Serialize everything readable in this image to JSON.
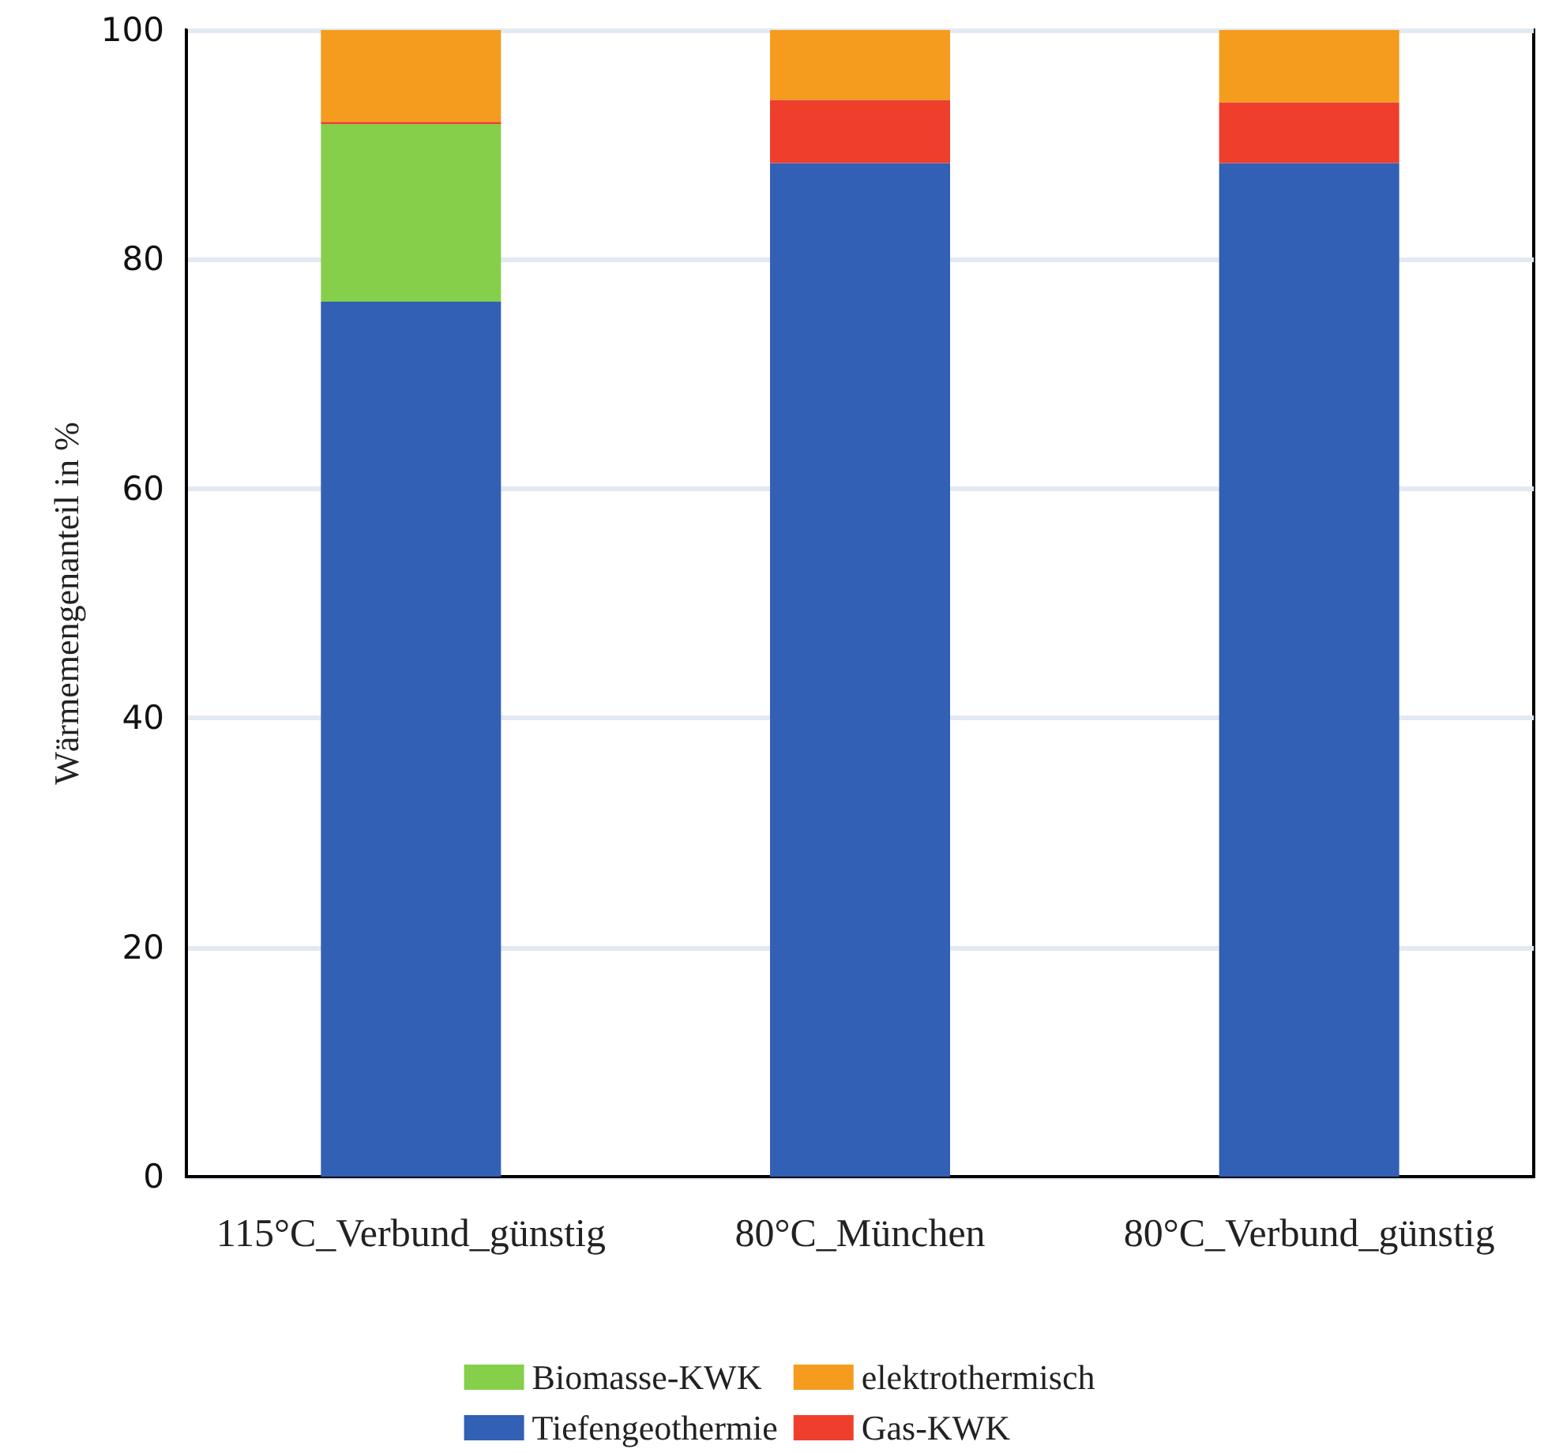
{
  "chart_data": {
    "type": "bar",
    "stacked": true,
    "ylabel": "Wärmemengenanteil in %",
    "categories": [
      "115°C_Verbund_günstig",
      "80°C_München",
      "80°C_Verbund_günstig"
    ],
    "series": [
      {
        "name": "Tiefengeothermie",
        "color": "#3160b5",
        "values": [
          76.3,
          88.4,
          88.4
        ]
      },
      {
        "name": "Biomasse-KWK",
        "color": "#86cf4b",
        "values": [
          15.5,
          0,
          0
        ]
      },
      {
        "name": "Gas-KWK",
        "color": "#ef3e2c",
        "values": [
          0.2,
          5.5,
          5.3
        ]
      },
      {
        "name": "elektrothermisch",
        "color": "#f59c1e",
        "values": [
          8.0,
          6.1,
          6.3
        ]
      }
    ],
    "ylim": [
      0,
      100
    ],
    "yticks": [
      0,
      20,
      40,
      60,
      80,
      100
    ],
    "grid": "y",
    "legend": "bottom"
  }
}
